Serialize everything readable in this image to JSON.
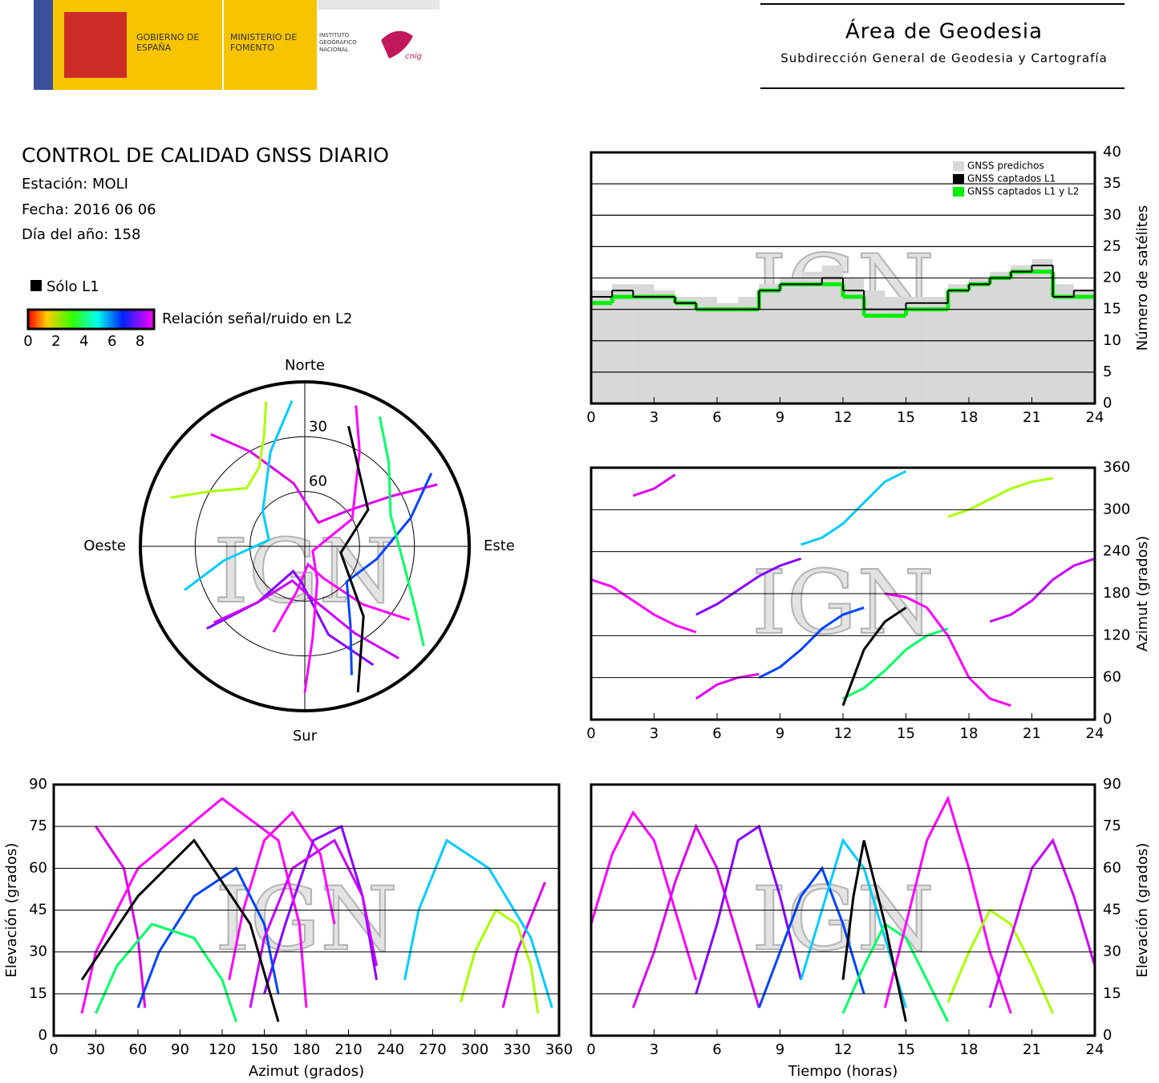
{
  "header": {
    "gov": "GOBIERNO DE ESPAÑA",
    "ministry": "MINISTERIO DE FOMENTO",
    "institute": "INSTITUTO GEOGRÁFICO NACIONAL",
    "cnig": "cnig",
    "area": "Área de Geodesia",
    "subarea": "Subdirección General de Geodesia y Cartografía"
  },
  "report": {
    "title": "CONTROL DE CALIDAD GNSS DIARIO",
    "station": "Estación: MOLI",
    "date": "Fecha: 2016 06 06",
    "doy": "Día del año: 158"
  },
  "legend": {
    "l1_only": "Sólo L1",
    "colorbar_label": "Relación señal/ruido en L2",
    "colorbar_range": [
      0,
      9
    ],
    "colorbar_ticks": [
      0,
      2,
      4,
      6,
      8
    ]
  },
  "watermark": "IGN",
  "satellite_tracks": [
    {
      "color": "#ff00ff",
      "time": [
        0,
        1,
        2,
        3,
        4,
        5
      ],
      "azimuth": [
        200,
        190,
        170,
        150,
        135,
        125
      ],
      "elevation": [
        40,
        65,
        80,
        70,
        45,
        20
      ]
    },
    {
      "color": "#e000f0",
      "time": [
        2,
        3,
        4,
        5,
        6,
        7,
        8
      ],
      "azimuth": [
        320,
        330,
        350,
        30,
        50,
        60,
        65
      ],
      "elevation": [
        10,
        30,
        55,
        75,
        60,
        35,
        10
      ]
    },
    {
      "color": "#8800ff",
      "time": [
        5,
        6,
        7,
        8,
        9,
        10
      ],
      "azimuth": [
        150,
        165,
        185,
        205,
        220,
        230
      ],
      "elevation": [
        15,
        40,
        70,
        75,
        50,
        20
      ]
    },
    {
      "color": "#0044ff",
      "time": [
        8,
        9,
        10,
        11,
        12,
        13
      ],
      "azimuth": [
        60,
        75,
        100,
        130,
        150,
        160
      ],
      "elevation": [
        10,
        30,
        50,
        60,
        40,
        15
      ]
    },
    {
      "color": "#00ccff",
      "time": [
        10,
        11,
        12,
        13,
        14,
        15
      ],
      "azimuth": [
        250,
        260,
        280,
        310,
        340,
        355
      ],
      "elevation": [
        20,
        45,
        70,
        60,
        35,
        10
      ]
    },
    {
      "color": "#00ff66",
      "time": [
        12,
        13,
        14,
        15,
        16,
        17
      ],
      "azimuth": [
        30,
        45,
        70,
        100,
        120,
        130
      ],
      "elevation": [
        8,
        25,
        40,
        35,
        20,
        5
      ]
    },
    {
      "color": "#ff00ff",
      "time": [
        14,
        15,
        16,
        17,
        18,
        19,
        20
      ],
      "azimuth": [
        180,
        175,
        160,
        120,
        60,
        30,
        20
      ],
      "elevation": [
        10,
        40,
        70,
        85,
        60,
        30,
        8
      ]
    },
    {
      "color": "#aaff00",
      "time": [
        17,
        18,
        19,
        20,
        21,
        22
      ],
      "azimuth": [
        290,
        300,
        315,
        330,
        340,
        345
      ],
      "elevation": [
        12,
        30,
        45,
        40,
        25,
        8
      ]
    },
    {
      "color": "#cc00ff",
      "time": [
        19,
        20,
        21,
        22,
        23,
        24
      ],
      "azimuth": [
        140,
        150,
        170,
        200,
        220,
        230
      ],
      "elevation": [
        10,
        35,
        60,
        70,
        50,
        25
      ]
    },
    {
      "color": "#000000",
      "time": [
        12,
        12.5,
        13,
        14,
        15
      ],
      "azimuth": [
        20,
        60,
        100,
        140,
        160
      ],
      "elevation": [
        20,
        50,
        70,
        40,
        5
      ]
    }
  ],
  "chart_data": [
    {
      "type": "step",
      "y_label": "Número de satélites",
      "x": [
        0,
        1,
        2,
        3,
        4,
        5,
        6,
        7,
        8,
        9,
        10,
        11,
        12,
        13,
        14,
        15,
        16,
        17,
        18,
        19,
        20,
        21,
        22,
        23
      ],
      "xlim": [
        0,
        24
      ],
      "xticks": [
        0,
        3,
        6,
        9,
        12,
        15,
        18,
        21,
        24
      ],
      "ylim": [
        0,
        40
      ],
      "yticks": [
        0,
        5,
        10,
        15,
        20,
        25,
        30,
        35,
        40
      ],
      "grid": true,
      "series": [
        {
          "name": "GNSS predichos",
          "color": "#d8d8d8",
          "values": [
            18,
            19,
            19,
            18,
            17,
            17,
            16,
            17,
            19,
            20,
            21,
            22,
            20,
            18,
            17,
            17,
            17,
            19,
            20,
            21,
            22,
            23,
            19,
            18
          ]
        },
        {
          "name": "GNSS captados L1 y L2",
          "color": "#00ee00",
          "values": [
            16,
            17,
            17,
            17,
            16,
            15,
            15,
            15,
            18,
            19,
            19,
            19,
            17,
            14,
            14,
            15,
            15,
            18,
            19,
            20,
            21,
            21,
            17,
            17
          ]
        },
        {
          "name": "GNSS captados L1",
          "color": "#000000",
          "values": [
            17,
            18,
            17,
            17,
            16,
            15,
            15,
            15,
            18,
            19,
            19,
            20,
            18,
            15,
            15,
            16,
            16,
            18,
            19,
            20,
            21,
            22,
            17,
            18
          ]
        }
      ]
    },
    {
      "type": "skyplot",
      "north": "Norte",
      "south": "Sur",
      "east": "Este",
      "west": "Oeste",
      "rlim": [
        0,
        90
      ],
      "rticks": [
        30,
        60
      ]
    },
    {
      "type": "track_time",
      "field": "azimuth",
      "y_label": "Azimut (grados)",
      "xlim": [
        0,
        24
      ],
      "xticks": [
        0,
        3,
        6,
        9,
        12,
        15,
        18,
        21,
        24
      ],
      "ylim": [
        0,
        360
      ],
      "yticks": [
        0,
        60,
        120,
        180,
        240,
        300,
        360
      ],
      "grid": true
    },
    {
      "type": "track_azimuth",
      "x_label": "Azimut (grados)",
      "y_label": "Elevación (grados)",
      "xlim": [
        0,
        360
      ],
      "xticks": [
        0,
        30,
        60,
        90,
        120,
        150,
        180,
        210,
        240,
        270,
        300,
        330,
        360
      ],
      "ylim": [
        0,
        90
      ],
      "yticks": [
        0,
        15,
        30,
        45,
        60,
        75,
        90
      ],
      "grid": true
    },
    {
      "type": "track_time",
      "field": "elevation",
      "x_label": "Tiempo (horas)",
      "y_label": "Elevación (grados)",
      "xlim": [
        0,
        24
      ],
      "xticks": [
        0,
        3,
        6,
        9,
        12,
        15,
        18,
        21,
        24
      ],
      "ylim": [
        0,
        90
      ],
      "yticks": [
        0,
        15,
        30,
        45,
        60,
        75,
        90
      ],
      "grid": true
    }
  ]
}
